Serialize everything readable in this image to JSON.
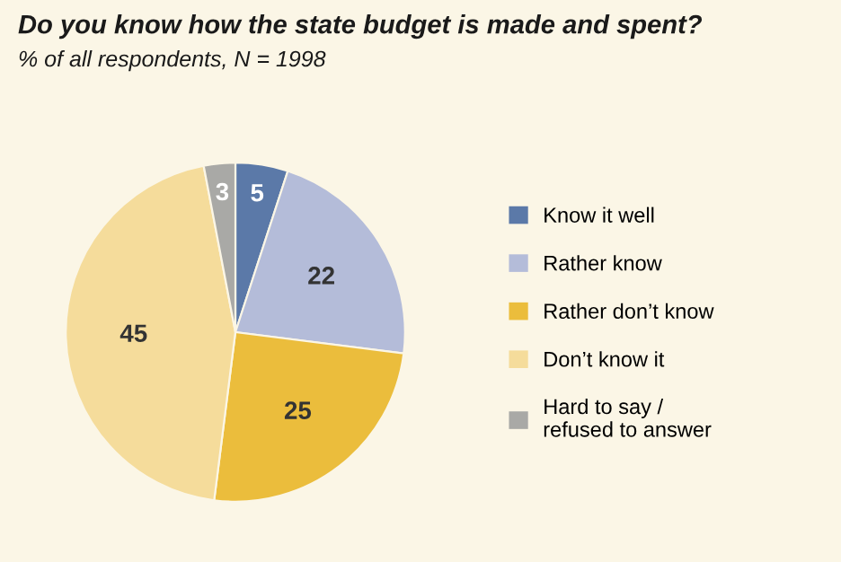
{
  "chart_data": {
    "type": "pie",
    "title": "Do you know how the state budget is made and spent?",
    "subtitle": "% of all respondents, N = 1998",
    "categories": [
      "Know it well",
      "Rather know",
      "Rather don’t know",
      "Don’t know it",
      "Hard to say /\nrefused to answer"
    ],
    "values": [
      5,
      22,
      25,
      45,
      3
    ],
    "colors": [
      "#5b79a8",
      "#b4bcd9",
      "#ebbd3c",
      "#f5dc9b",
      "#a9a9a6"
    ],
    "data_labels": true,
    "legend": "right"
  }
}
